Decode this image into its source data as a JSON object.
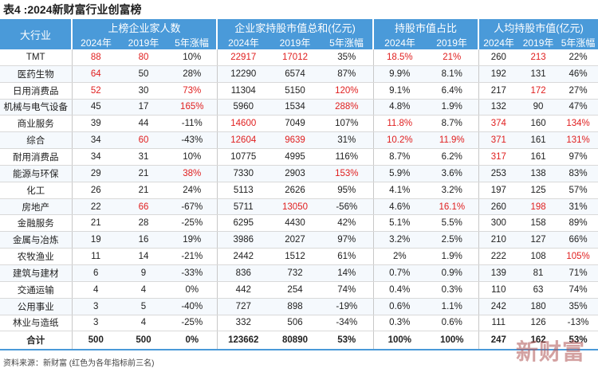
{
  "title": "表4 :2024新财富行业创富榜",
  "header": {
    "industry": "大行业",
    "groups": [
      "上榜企业家人数",
      "企业家持股市值总和(亿元)",
      "持股市值占比",
      "人均持股市值(亿元)"
    ],
    "sub": [
      "2024年",
      "2019年",
      "5年涨幅",
      "2024年",
      "2019年",
      "5年涨幅",
      "2024年",
      "2019年",
      "2024年",
      "2019年",
      "5年涨幅"
    ]
  },
  "rows": [
    {
      "name": "TMT",
      "cells": [
        {
          "v": "88",
          "r": true
        },
        {
          "v": "80",
          "r": true
        },
        {
          "v": "10%"
        },
        {
          "v": "22917",
          "r": true
        },
        {
          "v": "17012",
          "r": true
        },
        {
          "v": "35%"
        },
        {
          "v": "18.5%",
          "r": true
        },
        {
          "v": "21%",
          "r": true
        },
        {
          "v": "260"
        },
        {
          "v": "213",
          "r": true
        },
        {
          "v": "22%"
        }
      ]
    },
    {
      "name": "医药生物",
      "cells": [
        {
          "v": "64",
          "r": true
        },
        {
          "v": "50"
        },
        {
          "v": "28%"
        },
        {
          "v": "12290"
        },
        {
          "v": "6574"
        },
        {
          "v": "87%"
        },
        {
          "v": "9.9%"
        },
        {
          "v": "8.1%"
        },
        {
          "v": "192"
        },
        {
          "v": "131"
        },
        {
          "v": "46%"
        }
      ]
    },
    {
      "name": "日用消费品",
      "cells": [
        {
          "v": "52",
          "r": true
        },
        {
          "v": "30"
        },
        {
          "v": "73%",
          "r": true
        },
        {
          "v": "11304"
        },
        {
          "v": "5150"
        },
        {
          "v": "120%",
          "r": true
        },
        {
          "v": "9.1%"
        },
        {
          "v": "6.4%"
        },
        {
          "v": "217"
        },
        {
          "v": "172",
          "r": true
        },
        {
          "v": "27%"
        }
      ]
    },
    {
      "name": "机械与电气设备",
      "cells": [
        {
          "v": "45"
        },
        {
          "v": "17"
        },
        {
          "v": "165%",
          "r": true
        },
        {
          "v": "5960"
        },
        {
          "v": "1534"
        },
        {
          "v": "288%",
          "r": true
        },
        {
          "v": "4.8%"
        },
        {
          "v": "1.9%"
        },
        {
          "v": "132"
        },
        {
          "v": "90"
        },
        {
          "v": "47%"
        }
      ]
    },
    {
      "name": "商业服务",
      "cells": [
        {
          "v": "39"
        },
        {
          "v": "44"
        },
        {
          "v": "-11%"
        },
        {
          "v": "14600",
          "r": true
        },
        {
          "v": "7049"
        },
        {
          "v": "107%"
        },
        {
          "v": "11.8%",
          "r": true
        },
        {
          "v": "8.7%"
        },
        {
          "v": "374",
          "r": true
        },
        {
          "v": "160"
        },
        {
          "v": "134%",
          "r": true
        }
      ]
    },
    {
      "name": "综合",
      "cells": [
        {
          "v": "34"
        },
        {
          "v": "60",
          "r": true
        },
        {
          "v": "-43%"
        },
        {
          "v": "12604",
          "r": true
        },
        {
          "v": "9639",
          "r": true
        },
        {
          "v": "31%"
        },
        {
          "v": "10.2%",
          "r": true
        },
        {
          "v": "11.9%",
          "r": true
        },
        {
          "v": "371",
          "r": true
        },
        {
          "v": "161"
        },
        {
          "v": "131%",
          "r": true
        }
      ]
    },
    {
      "name": "耐用消费品",
      "cells": [
        {
          "v": "34"
        },
        {
          "v": "31"
        },
        {
          "v": "10%"
        },
        {
          "v": "10775"
        },
        {
          "v": "4995"
        },
        {
          "v": "116%"
        },
        {
          "v": "8.7%"
        },
        {
          "v": "6.2%"
        },
        {
          "v": "317",
          "r": true
        },
        {
          "v": "161"
        },
        {
          "v": "97%"
        }
      ]
    },
    {
      "name": "能源与环保",
      "cells": [
        {
          "v": "29"
        },
        {
          "v": "21"
        },
        {
          "v": "38%",
          "r": true
        },
        {
          "v": "7330"
        },
        {
          "v": "2903"
        },
        {
          "v": "153%",
          "r": true
        },
        {
          "v": "5.9%"
        },
        {
          "v": "3.6%"
        },
        {
          "v": "253"
        },
        {
          "v": "138"
        },
        {
          "v": "83%"
        }
      ]
    },
    {
      "name": "化工",
      "cells": [
        {
          "v": "26"
        },
        {
          "v": "21"
        },
        {
          "v": "24%"
        },
        {
          "v": "5113"
        },
        {
          "v": "2626"
        },
        {
          "v": "95%"
        },
        {
          "v": "4.1%"
        },
        {
          "v": "3.2%"
        },
        {
          "v": "197"
        },
        {
          "v": "125"
        },
        {
          "v": "57%"
        }
      ]
    },
    {
      "name": "房地产",
      "cells": [
        {
          "v": "22"
        },
        {
          "v": "66",
          "r": true
        },
        {
          "v": "-67%"
        },
        {
          "v": "5711"
        },
        {
          "v": "13050",
          "r": true
        },
        {
          "v": "-56%"
        },
        {
          "v": "4.6%"
        },
        {
          "v": "16.1%",
          "r": true
        },
        {
          "v": "260"
        },
        {
          "v": "198",
          "r": true
        },
        {
          "v": "31%"
        }
      ]
    },
    {
      "name": "金融服务",
      "cells": [
        {
          "v": "21"
        },
        {
          "v": "28"
        },
        {
          "v": "-25%"
        },
        {
          "v": "6295"
        },
        {
          "v": "4430"
        },
        {
          "v": "42%"
        },
        {
          "v": "5.1%"
        },
        {
          "v": "5.5%"
        },
        {
          "v": "300"
        },
        {
          "v": "158"
        },
        {
          "v": "89%"
        }
      ]
    },
    {
      "name": "金属与冶炼",
      "cells": [
        {
          "v": "19"
        },
        {
          "v": "16"
        },
        {
          "v": "19%"
        },
        {
          "v": "3986"
        },
        {
          "v": "2027"
        },
        {
          "v": "97%"
        },
        {
          "v": "3.2%"
        },
        {
          "v": "2.5%"
        },
        {
          "v": "210"
        },
        {
          "v": "127"
        },
        {
          "v": "66%"
        }
      ]
    },
    {
      "name": "农牧渔业",
      "cells": [
        {
          "v": "11"
        },
        {
          "v": "14"
        },
        {
          "v": "-21%"
        },
        {
          "v": "2442"
        },
        {
          "v": "1512"
        },
        {
          "v": "61%"
        },
        {
          "v": "2%"
        },
        {
          "v": "1.9%"
        },
        {
          "v": "222"
        },
        {
          "v": "108"
        },
        {
          "v": "105%",
          "r": true
        }
      ]
    },
    {
      "name": "建筑与建材",
      "cells": [
        {
          "v": "6"
        },
        {
          "v": "9"
        },
        {
          "v": "-33%"
        },
        {
          "v": "836"
        },
        {
          "v": "732"
        },
        {
          "v": "14%"
        },
        {
          "v": "0.7%"
        },
        {
          "v": "0.9%"
        },
        {
          "v": "139"
        },
        {
          "v": "81"
        },
        {
          "v": "71%"
        }
      ]
    },
    {
      "name": "交通运输",
      "cells": [
        {
          "v": "4"
        },
        {
          "v": "4"
        },
        {
          "v": "0%"
        },
        {
          "v": "442"
        },
        {
          "v": "254"
        },
        {
          "v": "74%"
        },
        {
          "v": "0.4%"
        },
        {
          "v": "0.3%"
        },
        {
          "v": "110"
        },
        {
          "v": "63"
        },
        {
          "v": "74%"
        }
      ]
    },
    {
      "name": "公用事业",
      "cells": [
        {
          "v": "3"
        },
        {
          "v": "5"
        },
        {
          "v": "-40%"
        },
        {
          "v": "727"
        },
        {
          "v": "898"
        },
        {
          "v": "-19%"
        },
        {
          "v": "0.6%"
        },
        {
          "v": "1.1%"
        },
        {
          "v": "242"
        },
        {
          "v": "180"
        },
        {
          "v": "35%"
        }
      ]
    },
    {
      "name": "林业与造纸",
      "cells": [
        {
          "v": "3"
        },
        {
          "v": "4"
        },
        {
          "v": "-25%"
        },
        {
          "v": "332"
        },
        {
          "v": "506"
        },
        {
          "v": "-34%"
        },
        {
          "v": "0.3%"
        },
        {
          "v": "0.6%"
        },
        {
          "v": "111"
        },
        {
          "v": "126"
        },
        {
          "v": "-13%"
        }
      ]
    }
  ],
  "total": {
    "name": "合计",
    "cells": [
      "500",
      "500",
      "0%",
      "123662",
      "80890",
      "53%",
      "100%",
      "100%",
      "247",
      "162",
      "53%"
    ]
  },
  "source": "资料来源：新财富 (红色为各年指标前三名)",
  "watermark": "新财富",
  "colors": {
    "header_bg": "#4a9ad9",
    "highlight": "#e01e1e"
  }
}
